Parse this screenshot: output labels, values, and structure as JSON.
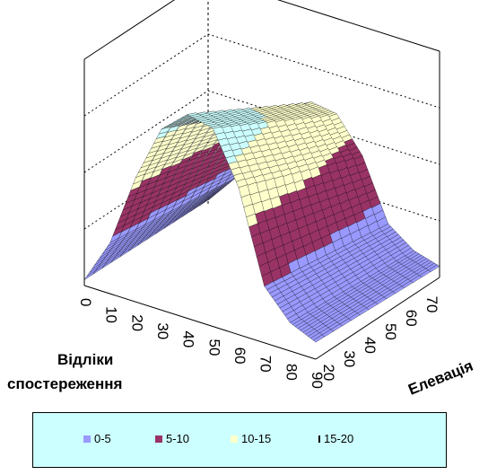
{
  "chart_data": {
    "type": "3d-surface",
    "title": "",
    "x_axis_title": "Відліки спостереження",
    "x_axis_title_lines": [
      "Відліки",
      "спостереження"
    ],
    "x_ticks": [
      "0",
      "10",
      "20",
      "30",
      "40",
      "50",
      "60",
      "70",
      "80",
      "90"
    ],
    "y_axis_title": "Елевація",
    "y_ticks": [
      "20",
      "30",
      "40",
      "50",
      "60",
      "70"
    ],
    "z_bands": [
      {
        "name": "0-5",
        "color": "#9999ff"
      },
      {
        "name": "5-10",
        "color": "#993366"
      },
      {
        "name": "10-15",
        "color": "#ffffcc"
      },
      {
        "name": "15-20",
        "color": "#ccffff"
      }
    ],
    "z_range": [
      0,
      20
    ],
    "profile_x": [
      0,
      10,
      20,
      30,
      40,
      50,
      60,
      70,
      80,
      90
    ],
    "profile_z": [
      0.5,
      4.5,
      11,
      16,
      18,
      17.5,
      13,
      5,
      2.5,
      1.5
    ],
    "legend_position": "bottom",
    "grid": true
  }
}
